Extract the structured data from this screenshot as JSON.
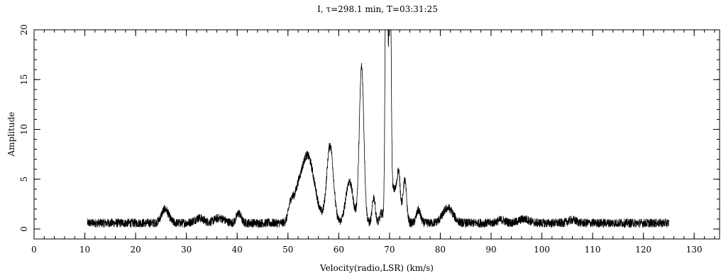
{
  "chart_data": {
    "type": "line",
    "title": "I, τ=298.1 min, T=03:31:25",
    "xlabel": "Velocity(radio,LSR) (km/s)",
    "ylabel": "Amplitude",
    "xlim": [
      0,
      135
    ],
    "ylim": [
      -1,
      20
    ],
    "x_ticks": [
      0,
      10,
      20,
      30,
      40,
      50,
      60,
      70,
      80,
      90,
      100,
      110,
      120,
      130
    ],
    "y_ticks": [
      0,
      5,
      10,
      15,
      20
    ],
    "x_minor_step": 2,
    "y_minor_step": 1,
    "grid": false,
    "legend": "none",
    "series": [
      {
        "color": "#000000",
        "x_range": [
          10.5,
          125
        ],
        "baseline": 0.6,
        "noise": 0.45,
        "components": [
          {
            "center": 25.8,
            "amplitude": 1.4,
            "width": 0.7
          },
          {
            "center": 32.5,
            "amplitude": 0.5,
            "width": 0.9
          },
          {
            "center": 36.5,
            "amplitude": 0.5,
            "width": 1.0
          },
          {
            "center": 40.3,
            "amplitude": 1.0,
            "width": 0.45
          },
          {
            "center": 50.6,
            "amplitude": 1.8,
            "width": 0.5
          },
          {
            "center": 51.8,
            "amplitude": 1.2,
            "width": 0.6
          },
          {
            "center": 53.8,
            "amplitude": 6.8,
            "width": 1.4
          },
          {
            "center": 58.3,
            "amplitude": 7.8,
            "width": 0.65
          },
          {
            "center": 62.1,
            "amplitude": 4.2,
            "width": 0.7
          },
          {
            "center": 64.5,
            "amplitude": 15.7,
            "width": 0.45
          },
          {
            "center": 66.9,
            "amplitude": 2.6,
            "width": 0.3
          },
          {
            "center": 68.4,
            "amplitude": 1.0,
            "width": 0.3
          },
          {
            "center": 69.4,
            "amplitude": 40,
            "width": 0.22
          },
          {
            "center": 70.1,
            "amplitude": 30,
            "width": 0.2
          },
          {
            "center": 70.8,
            "amplitude": 3.3,
            "width": 0.5
          },
          {
            "center": 71.8,
            "amplitude": 4.8,
            "width": 0.35
          },
          {
            "center": 73.0,
            "amplitude": 4.3,
            "width": 0.35
          },
          {
            "center": 75.7,
            "amplitude": 1.3,
            "width": 0.4
          },
          {
            "center": 81.5,
            "amplitude": 1.5,
            "width": 1.0
          },
          {
            "center": 92.0,
            "amplitude": 0.3,
            "width": 0.8
          },
          {
            "center": 96.5,
            "amplitude": 0.4,
            "width": 1.0
          },
          {
            "center": 106.0,
            "amplitude": 0.3,
            "width": 0.8
          }
        ]
      }
    ]
  }
}
